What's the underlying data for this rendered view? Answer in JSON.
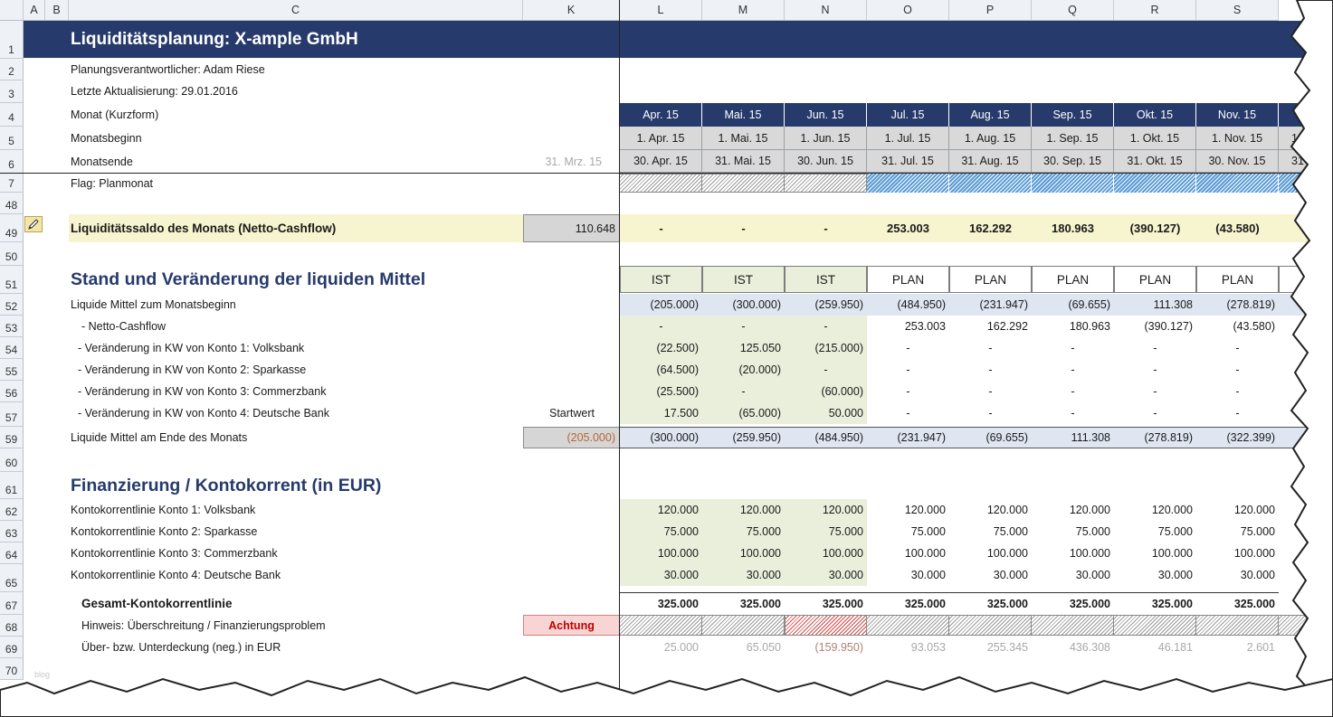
{
  "columns": [
    "A",
    "B",
    "C",
    "K",
    "L",
    "M",
    "N",
    "O",
    "P",
    "Q",
    "R",
    "S"
  ],
  "rows": [
    "1",
    "2",
    "3",
    "4",
    "5",
    "6",
    "7",
    "48",
    "49",
    "50",
    "51",
    "52",
    "53",
    "54",
    "55",
    "56",
    "57",
    "59",
    "60",
    "61",
    "62",
    "63",
    "64",
    "65",
    "67",
    "68",
    "69",
    "70"
  ],
  "title": "Liquiditätsplanung: X-ample GmbH",
  "meta": {
    "responsible": "Planungsverantwortlicher: Adam Riese",
    "updated": "Letzte Aktualisierung: 29.01.2016",
    "month_label": "Monat (Kurzform)",
    "month_start_label": "Monatsbeginn",
    "month_end_label": "Monatsende",
    "flag_label": "Flag: Planmonat",
    "k_month_end": "31. Mrz. 15"
  },
  "months": [
    "Apr. 15",
    "Mai. 15",
    "Jun. 15",
    "Jul. 15",
    "Aug. 15",
    "Sep. 15",
    "Okt. 15",
    "Nov. 15"
  ],
  "month_start": [
    "1. Apr. 15",
    "1. Mai. 15",
    "1. Jun. 15",
    "1. Jul. 15",
    "1. Aug. 15",
    "1. Sep. 15",
    "1. Okt. 15",
    "1. Nov. 15"
  ],
  "month_end": [
    "30. Apr. 15",
    "31. Mai. 15",
    "30. Jun. 15",
    "31. Jul. 15",
    "31. Aug. 15",
    "30. Sep. 15",
    "31. Okt. 15",
    "30. Nov. 15"
  ],
  "partial_next": {
    "month": "D",
    "start": "1",
    "end": "31"
  },
  "saldo": {
    "label": "Liquiditätssaldo des Monats (Netto-Cashflow)",
    "k": "110.648",
    "values": [
      "-",
      "-",
      "-",
      "253.003",
      "162.292",
      "180.963",
      "(390.127)",
      "(43.580)"
    ]
  },
  "section1": "Stand und Veränderung der liquiden Mittel",
  "status": [
    "IST",
    "IST",
    "IST",
    "PLAN",
    "PLAN",
    "PLAN",
    "PLAN",
    "PLAN"
  ],
  "rows_liquid": [
    {
      "label": "Liquide Mittel zum Monatsbeginn",
      "values": [
        "(205.000)",
        "(300.000)",
        "(259.950)",
        "(484.950)",
        "(231.947)",
        "(69.655)",
        "111.308",
        "(278.819)"
      ]
    },
    {
      "label": "- Netto-Cashflow",
      "values": [
        "-",
        "-",
        "-",
        "253.003",
        "162.292",
        "180.963",
        "(390.127)",
        "(43.580)"
      ]
    },
    {
      "label": "- Veränderung in KW von Konto 1: Volksbank",
      "values": [
        "(22.500)",
        "125.050",
        "(215.000)",
        "-",
        "-",
        "-",
        "-",
        "-"
      ]
    },
    {
      "label": "- Veränderung in KW von Konto 2: Sparkasse",
      "values": [
        "(64.500)",
        "(20.000)",
        "-",
        "-",
        "-",
        "-",
        "-",
        "-"
      ]
    },
    {
      "label": "- Veränderung in KW von Konto 3: Commerzbank",
      "values": [
        "(25.500)",
        "-",
        "(60.000)",
        "-",
        "-",
        "-",
        "-",
        "-"
      ]
    },
    {
      "label": "- Veränderung in KW von Konto 4: Deutsche Bank",
      "values": [
        "17.500",
        "(65.000)",
        "50.000",
        "-",
        "-",
        "-",
        "-",
        "-"
      ]
    }
  ],
  "startwert": "Startwert",
  "end_row": {
    "label": "Liquide Mittel am Ende des Monats",
    "k": "(205.000)",
    "values": [
      "(300.000)",
      "(259.950)",
      "(484.950)",
      "(231.947)",
      "(69.655)",
      "111.308",
      "(278.819)",
      "(322.399)"
    ]
  },
  "section2": "Finanzierung / Kontokorrent (in EUR)",
  "credit_lines": [
    {
      "label": "Kontokorrentlinie Konto 1: Volksbank",
      "values": [
        "120.000",
        "120.000",
        "120.000",
        "120.000",
        "120.000",
        "120.000",
        "120.000",
        "120.000"
      ]
    },
    {
      "label": "Kontokorrentlinie Konto 2: Sparkasse",
      "values": [
        "75.000",
        "75.000",
        "75.000",
        "75.000",
        "75.000",
        "75.000",
        "75.000",
        "75.000"
      ]
    },
    {
      "label": "Kontokorrentlinie Konto 3: Commerzbank",
      "values": [
        "100.000",
        "100.000",
        "100.000",
        "100.000",
        "100.000",
        "100.000",
        "100.000",
        "100.000"
      ]
    },
    {
      "label": "Kontokorrentlinie Konto 4: Deutsche Bank",
      "values": [
        "30.000",
        "30.000",
        "30.000",
        "30.000",
        "30.000",
        "30.000",
        "30.000",
        "30.000"
      ]
    }
  ],
  "total": {
    "label": "Gesamt-Kontokorrentlinie",
    "values": [
      "325.000",
      "325.000",
      "325.000",
      "325.000",
      "325.000",
      "325.000",
      "325.000",
      "325.000"
    ]
  },
  "hint": {
    "label": "Hinweis:  Überschreitung / Finanzierungsproblem",
    "k": "Achtung"
  },
  "coverage": {
    "label": "Über- bzw. Unterdeckung (neg.) in EUR",
    "values": [
      "25.000",
      "65.050",
      "(159.950)",
      "93.053",
      "255.345",
      "436.308",
      "46.181",
      "2.601"
    ]
  },
  "watermark": "blog",
  "colors": {
    "title_bg": "#263a6b",
    "ist_bg": "#e9efdb",
    "plan_blue": "#5b9bd5",
    "alert": "#c00000"
  }
}
